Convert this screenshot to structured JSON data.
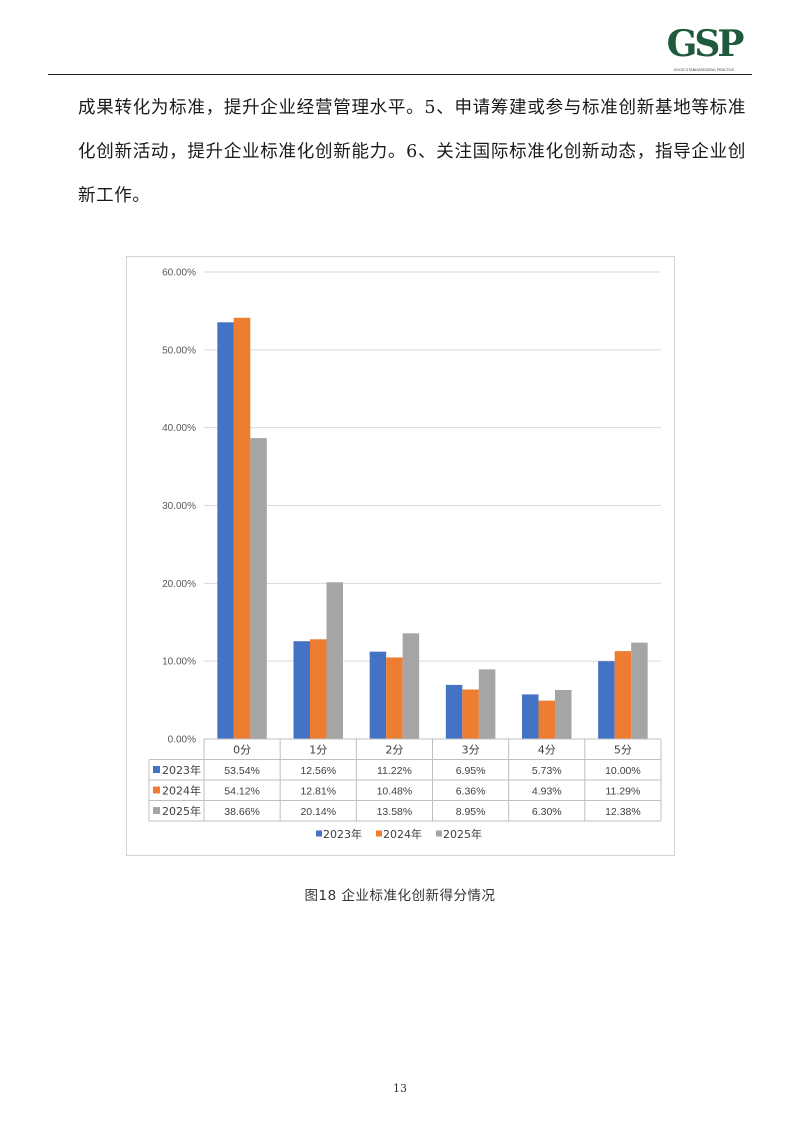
{
  "header": {
    "logo_text": "GSP",
    "logo_tagline": "GOOD STANDARDIZING PRACTICE",
    "logo_color": "#1f5a3c"
  },
  "body": {
    "paragraph": "成果转化为标准，提升企业经营管理水平。5、申请筹建或参与标准创新基地等标准化创新活动，提升企业标准化创新能力。6、关注国际标准化创新动态，指导企业创新工作。"
  },
  "chart_data": {
    "type": "bar",
    "categories": [
      "0分",
      "1分",
      "2分",
      "3分",
      "4分",
      "5分"
    ],
    "series": [
      {
        "name": "2023年",
        "color": "#4472c4",
        "values": [
          53.54,
          12.56,
          11.22,
          6.95,
          5.73,
          10.0
        ],
        "labels": [
          "53.54%",
          "12.56%",
          "11.22%",
          "6.95%",
          "5.73%",
          "10.00%"
        ]
      },
      {
        "name": "2024年",
        "color": "#ed7d31",
        "values": [
          54.12,
          12.81,
          10.48,
          6.36,
          4.93,
          11.29
        ],
        "labels": [
          "54.12%",
          "12.81%",
          "10.48%",
          "6.36%",
          "4.93%",
          "11.29%"
        ]
      },
      {
        "name": "2025年",
        "color": "#a5a5a5",
        "values": [
          38.66,
          20.14,
          13.58,
          8.95,
          6.3,
          12.38
        ],
        "labels": [
          "38.66%",
          "20.14%",
          "13.58%",
          "8.95%",
          "6.30%",
          "12.38%"
        ]
      }
    ],
    "y_ticks": [
      "0.00%",
      "10.00%",
      "20.00%",
      "30.00%",
      "40.00%",
      "50.00%",
      "60.00%"
    ],
    "ylim": [
      0,
      60
    ],
    "grid": true,
    "legend_placement": "bottom",
    "data_table": true
  },
  "caption": "图18 企业标准化创新得分情况",
  "page_number": "13"
}
